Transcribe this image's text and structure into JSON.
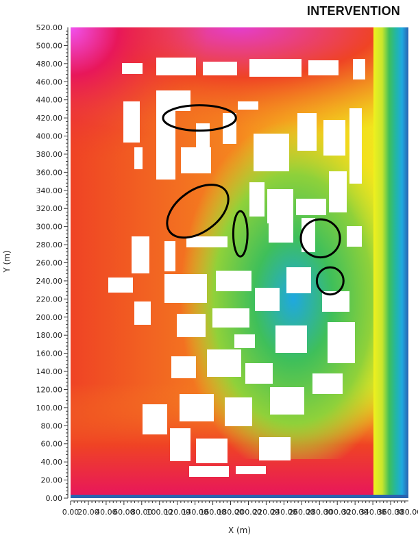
{
  "chart_data": {
    "type": "heatmap",
    "title": "INTERVENTION",
    "xlabel": "X (m)",
    "ylabel": "Y (m)",
    "xlim": [
      0,
      380
    ],
    "ylim": [
      0,
      520
    ],
    "x_tick_labels": [
      "0.00",
      "20.00",
      "40.00",
      "60.00",
      "80.00",
      "100.00",
      "120.00",
      "140.00",
      "160.00",
      "180.00",
      "200.00",
      "220.00",
      "240.00",
      "260.00",
      "280.00",
      "300.00",
      "320.00",
      "340.00",
      "360.00",
      "380.00"
    ],
    "y_tick_labels": [
      "0.00",
      "20.00",
      "40.00",
      "60.00",
      "80.00",
      "100.00",
      "120.00",
      "140.00",
      "160.00",
      "180.00",
      "200.00",
      "220.00",
      "240.00",
      "260.00",
      "280.00",
      "300.00",
      "320.00",
      "340.00",
      "360.00",
      "380.00",
      "400.00",
      "420.00",
      "440.00",
      "460.00",
      "480.00",
      "500.00",
      "520.00"
    ],
    "colorscale": [
      "#2a63b0",
      "#1fa8e0",
      "#22b6a8",
      "#3fbf5a",
      "#8fd13a",
      "#c9e62c",
      "#f0f01e",
      "#f7c21a",
      "#f5871f",
      "#ef4324",
      "#e8175a",
      "#e43dcc",
      "#f152f0"
    ],
    "highlight_ellipses": [
      {
        "cx": 145,
        "cy": 420,
        "rx": 41,
        "ry": 14,
        "angle": 0
      },
      {
        "cx": 143,
        "cy": 317,
        "rx": 39,
        "ry": 23,
        "angle": -36
      },
      {
        "cx": 191,
        "cy": 292,
        "rx": 8,
        "ry": 25,
        "angle": 0
      },
      {
        "cx": 281,
        "cy": 287,
        "rx": 22,
        "ry": 21,
        "angle": 0
      },
      {
        "cx": 292,
        "cy": 240,
        "rx": 15,
        "ry": 15,
        "angle": 0
      }
    ],
    "colors": {
      "ellipse_stroke": "#000000",
      "building": "#ffffff"
    }
  }
}
